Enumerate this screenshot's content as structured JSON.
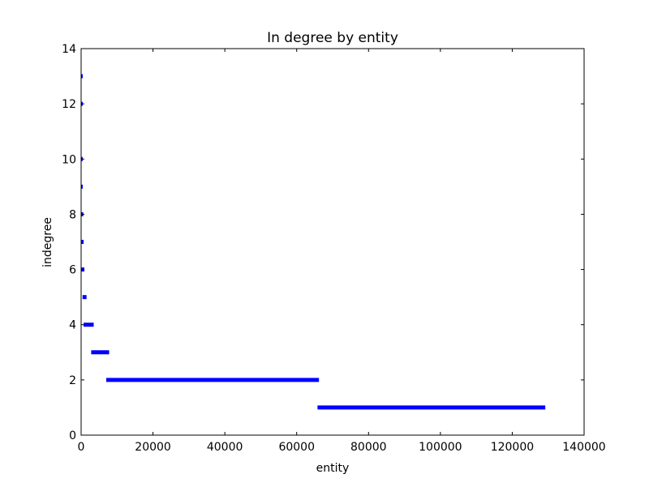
{
  "chart_data": {
    "type": "scatter",
    "title": "In degree by entity",
    "xlabel": "entity",
    "ylabel": "indegree",
    "xlim": [
      0,
      140000
    ],
    "ylim": [
      0,
      14
    ],
    "x_ticks": [
      0,
      20000,
      40000,
      60000,
      80000,
      100000,
      120000,
      140000
    ],
    "x_tick_labels": [
      "0",
      "20000",
      "40000",
      "60000",
      "80000",
      "100000",
      "120000",
      "140000"
    ],
    "y_ticks": [
      0,
      2,
      4,
      6,
      8,
      10,
      12,
      14
    ],
    "y_tick_labels": [
      "0",
      "2",
      "4",
      "6",
      "8",
      "10",
      "12",
      "14"
    ],
    "grid": false,
    "legend": "none",
    "marker_color": "#0000ff",
    "segments": [
      {
        "y": 13,
        "x_start": 0,
        "x_end": 100
      },
      {
        "y": 12,
        "x_start": 0,
        "x_end": 200
      },
      {
        "y": 10,
        "x_start": 0,
        "x_end": 300
      },
      {
        "y": 9,
        "x_start": 0,
        "x_end": 400
      },
      {
        "y": 8,
        "x_start": 0,
        "x_end": 600
      },
      {
        "y": 7,
        "x_start": 0,
        "x_end": 700
      },
      {
        "y": 6,
        "x_start": 100,
        "x_end": 900
      },
      {
        "y": 5,
        "x_start": 400,
        "x_end": 1500
      },
      {
        "y": 4,
        "x_start": 700,
        "x_end": 3500
      },
      {
        "y": 3,
        "x_start": 2800,
        "x_end": 7800
      },
      {
        "y": 2,
        "x_start": 7000,
        "x_end": 66200
      },
      {
        "y": 1,
        "x_start": 65800,
        "x_end": 129200
      }
    ]
  }
}
